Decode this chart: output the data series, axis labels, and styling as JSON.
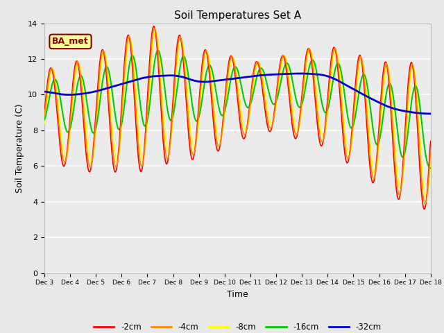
{
  "title": "Soil Temperatures Set A",
  "xlabel": "Time",
  "ylabel": "Soil Temperature (C)",
  "ylim": [
    0,
    14
  ],
  "yticks": [
    0,
    2,
    4,
    6,
    8,
    10,
    12,
    14
  ],
  "annotation_text": "BA_met",
  "annotation_color": "#8B0000",
  "annotation_bg": "#FFFF99",
  "fig_bg": "#E8E8E8",
  "plot_bg": "#EBEBEB",
  "grid_color": "#FFFFFF",
  "line_colors": [
    "#FF0000",
    "#FF8800",
    "#FFFF00",
    "#00CC00",
    "#0000CC"
  ],
  "line_labels": [
    "-2cm",
    "-4cm",
    "-8cm",
    "-16cm",
    "-32cm"
  ],
  "xtick_labels": [
    "Dec 3",
    "Dec 4",
    "Dec 5",
    "Dec 6",
    "Dec 7",
    "Dec 8",
    "Dec 9",
    "Dec 10",
    "Dec 11",
    "Dec 12",
    "Dec 13",
    "Dec 14",
    "Dec 15",
    "Dec 16",
    "Dec 17",
    "Dec 18"
  ],
  "figsize": [
    6.4,
    4.8
  ],
  "dpi": 100
}
